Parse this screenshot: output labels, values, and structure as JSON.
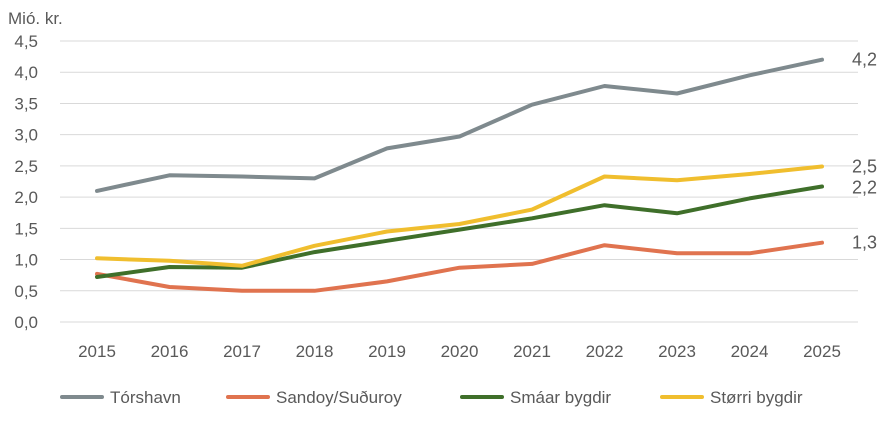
{
  "chart_data": {
    "type": "line",
    "title": "",
    "ylabel": "Mió. kr.",
    "xlabel": "",
    "ylim": [
      0,
      4.5
    ],
    "y_ticks": [
      "0,0",
      "0,5",
      "1,0",
      "1,5",
      "2,0",
      "2,5",
      "3,0",
      "3,5",
      "4,0",
      "4,5"
    ],
    "y_tick_values": [
      0,
      0.5,
      1,
      1.5,
      2,
      2.5,
      3,
      3.5,
      4,
      4.5
    ],
    "categories": [
      "2015",
      "2016",
      "2017",
      "2018",
      "2019",
      "2020",
      "2021",
      "2022",
      "2023",
      "2024",
      "2025"
    ],
    "grid": true,
    "legend_position": "bottom",
    "series": [
      {
        "name": "Tórshavn",
        "color": "#7f8a8e",
        "values": [
          2.1,
          2.35,
          2.33,
          2.3,
          2.78,
          2.97,
          3.48,
          3.78,
          3.66,
          3.95,
          4.2
        ],
        "end_label": "4,2"
      },
      {
        "name": "Sandoy/Suðuroy",
        "color": "#e0734f",
        "values": [
          0.77,
          0.56,
          0.5,
          0.5,
          0.65,
          0.87,
          0.93,
          1.23,
          1.1,
          1.1,
          1.27
        ],
        "end_label": "1,3"
      },
      {
        "name": "Smáar bygdir",
        "color": "#3f6f2a",
        "values": [
          0.72,
          0.88,
          0.87,
          1.12,
          1.3,
          1.48,
          1.66,
          1.87,
          1.74,
          1.98,
          2.17
        ],
        "end_label": "2,2"
      },
      {
        "name": "Størri bygdir",
        "color": "#f0be2e",
        "values": [
          1.02,
          0.98,
          0.9,
          1.22,
          1.45,
          1.57,
          1.8,
          2.33,
          2.27,
          2.37,
          2.49
        ],
        "end_label": "2,5"
      }
    ]
  }
}
